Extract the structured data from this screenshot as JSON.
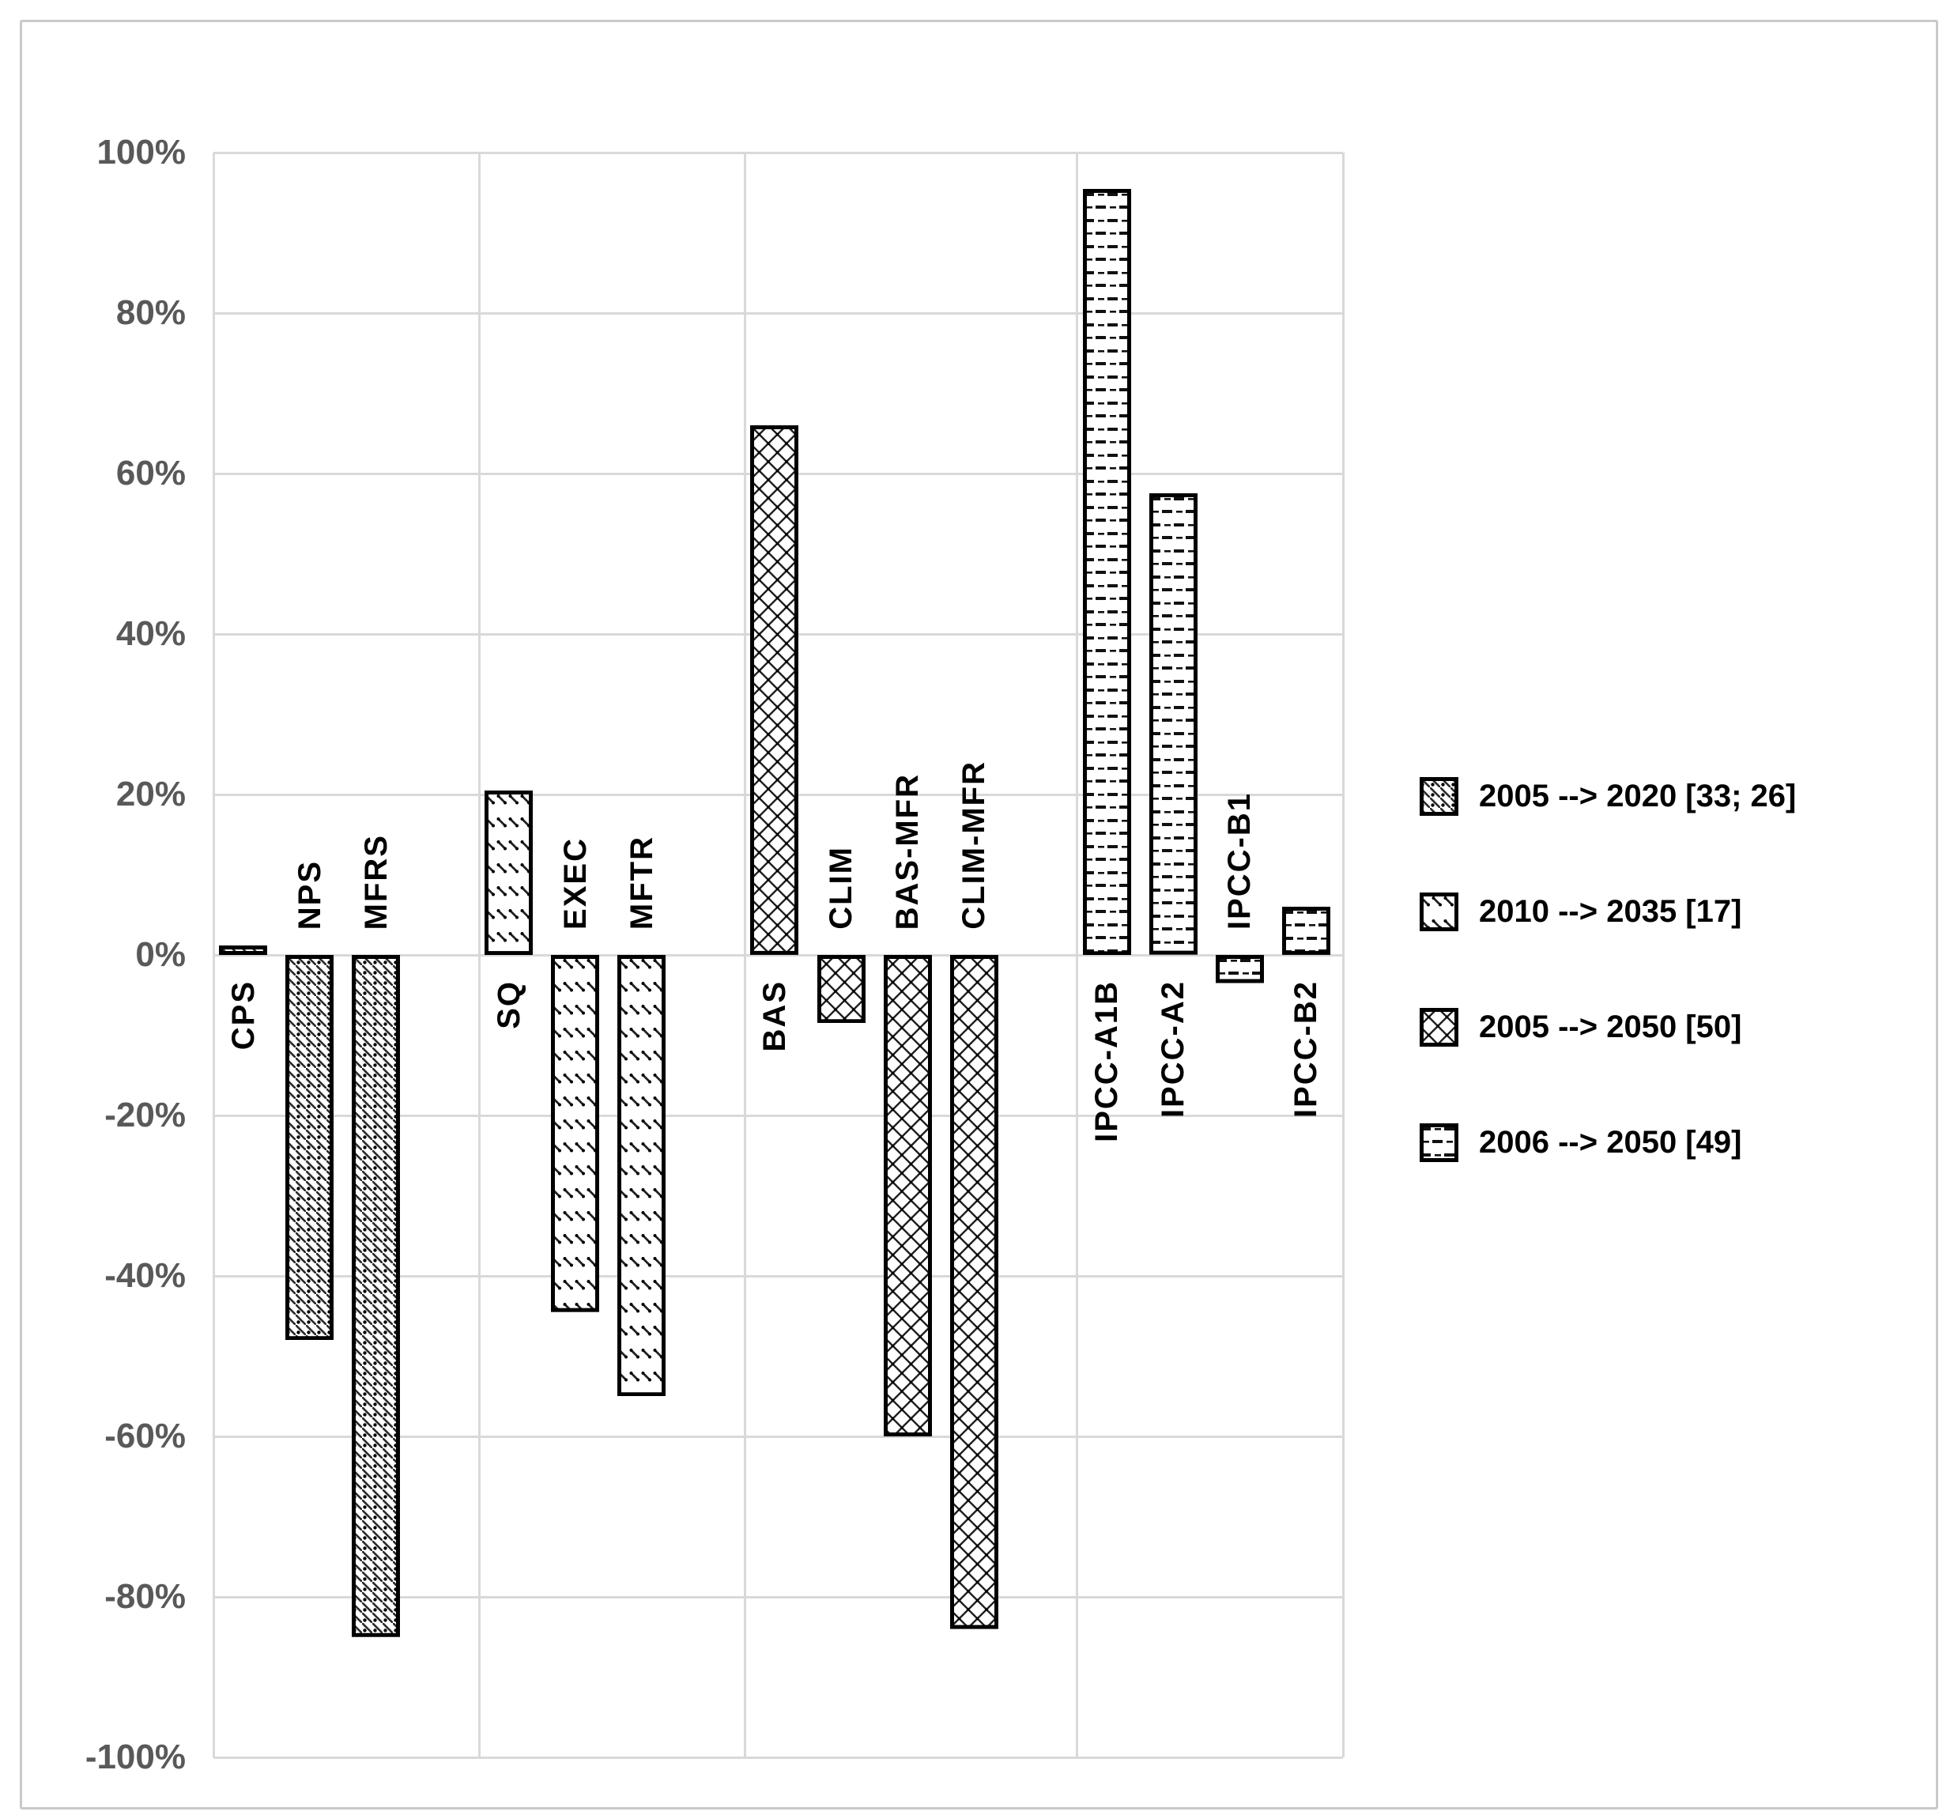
{
  "chart_data": {
    "type": "bar",
    "title": "",
    "xlabel": "",
    "ylabel": "",
    "unit": "%",
    "ylim": [
      -100,
      100
    ],
    "ytick_step": 20,
    "grid": true,
    "legend_position": "right",
    "y_tick_labels": [
      "100%",
      "80%",
      "60%",
      "40%",
      "20%",
      "0%",
      "-20%",
      "-40%",
      "-60%",
      "-80%",
      "-100%"
    ],
    "series": [
      {
        "name": "2005 --> 2020 [33; 26]",
        "pattern": "diagonal-dotted",
        "bars": [
          {
            "label": "CPS",
            "value": 0.5
          },
          {
            "label": "NPS",
            "value": -48
          },
          {
            "label": "MFRS",
            "value": -85
          }
        ]
      },
      {
        "name": "2010 --> 2035 [17]",
        "pattern": "diagonal-dash-rows",
        "bars": [
          {
            "label": "SQ",
            "value": 20.5
          },
          {
            "label": "EXEC",
            "value": -44.5
          },
          {
            "label": "MFTR",
            "value": -55
          }
        ]
      },
      {
        "name": "2005 --> 2050 [50]",
        "pattern": "crosshatch-dotted",
        "bars": [
          {
            "label": "BAS",
            "value": 66
          },
          {
            "label": "CLIM",
            "value": -8.5
          },
          {
            "label": "BAS-MFR",
            "value": -60
          },
          {
            "label": "CLIM-MFR",
            "value": -84
          }
        ]
      },
      {
        "name": "2006 --> 2050 [49]",
        "pattern": "horizontal-dashes",
        "bars": [
          {
            "label": "IPCC-A1B",
            "value": 95.5
          },
          {
            "label": "IPCC-A2",
            "value": 57.5
          },
          {
            "label": "IPCC-B1",
            "value": -3.5
          },
          {
            "label": "IPCC-B2",
            "value": 6
          }
        ]
      }
    ]
  },
  "colors": {
    "background": "#ffffff",
    "frame_border": "#c9c9c9",
    "gridline": "#d9d9d9",
    "tick_label": "#595959",
    "category_label": "#000000",
    "bar_outline": "#000000"
  }
}
